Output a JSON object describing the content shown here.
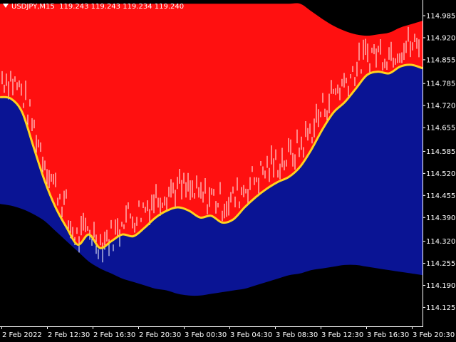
{
  "header": {
    "symbol": "USDJPY,M15",
    "ohlc": "119.243 119.243 119.234 119.240"
  },
  "colors": {
    "background": "#000000",
    "upper_band_fill": "#ff1010",
    "lower_band_fill": "#0a1494",
    "midline": "#ffd21e",
    "bars": "#ffffff"
  },
  "chart_data": {
    "type": "line",
    "yticks": [
      "114.985",
      "114.920",
      "114.855",
      "114.785",
      "114.720",
      "114.655",
      "114.585",
      "114.520",
      "114.455",
      "114.390",
      "114.320",
      "114.255",
      "114.190",
      "114.125"
    ],
    "ylim": [
      114.1,
      115.0
    ],
    "xticks": [
      "2 Feb 2022",
      "2 Feb 12:30",
      "2 Feb 16:30",
      "2 Feb 20:30",
      "3 Feb 00:30",
      "3 Feb 04:30",
      "3 Feb 08:30",
      "3 Feb 12:30",
      "3 Feb 16:30",
      "3 Feb 20:30"
    ],
    "series": [
      {
        "role": "upper_band",
        "values": [
          115.02,
          115.02,
          115.02,
          115.02,
          115.02,
          115.02,
          115.02,
          115.02,
          115.02,
          115.02,
          115.02,
          115.02,
          115.02,
          115.02,
          115.02,
          115.02,
          115.02,
          115.02,
          115.02,
          115.02,
          115.02,
          115.02,
          115.02,
          115.02,
          115.02,
          115.02,
          115.02,
          115.02,
          114.998,
          114.975,
          114.955,
          114.94,
          114.93,
          114.926,
          114.93,
          114.935,
          114.95,
          114.96,
          114.97
        ]
      },
      {
        "role": "midline",
        "values": [
          114.745,
          114.74,
          114.7,
          114.6,
          114.5,
          114.42,
          114.36,
          114.31,
          114.34,
          114.3,
          114.32,
          114.34,
          114.335,
          114.36,
          114.39,
          114.41,
          114.42,
          114.41,
          114.39,
          114.395,
          114.375,
          114.385,
          114.42,
          114.45,
          114.475,
          114.495,
          114.51,
          114.54,
          114.59,
          114.65,
          114.7,
          114.73,
          114.77,
          114.81,
          114.82,
          114.815,
          114.835,
          114.84,
          114.83
        ]
      },
      {
        "role": "lower_band",
        "values": [
          114.43,
          114.425,
          114.415,
          114.4,
          114.38,
          114.35,
          114.32,
          114.29,
          114.26,
          114.24,
          114.225,
          114.21,
          114.2,
          114.19,
          114.18,
          114.175,
          114.165,
          114.16,
          114.16,
          114.165,
          114.17,
          114.175,
          114.18,
          114.19,
          114.2,
          114.21,
          114.22,
          114.225,
          114.235,
          114.24,
          114.245,
          114.25,
          114.25,
          114.245,
          114.24,
          114.235,
          114.23,
          114.225,
          114.22
        ]
      }
    ]
  }
}
